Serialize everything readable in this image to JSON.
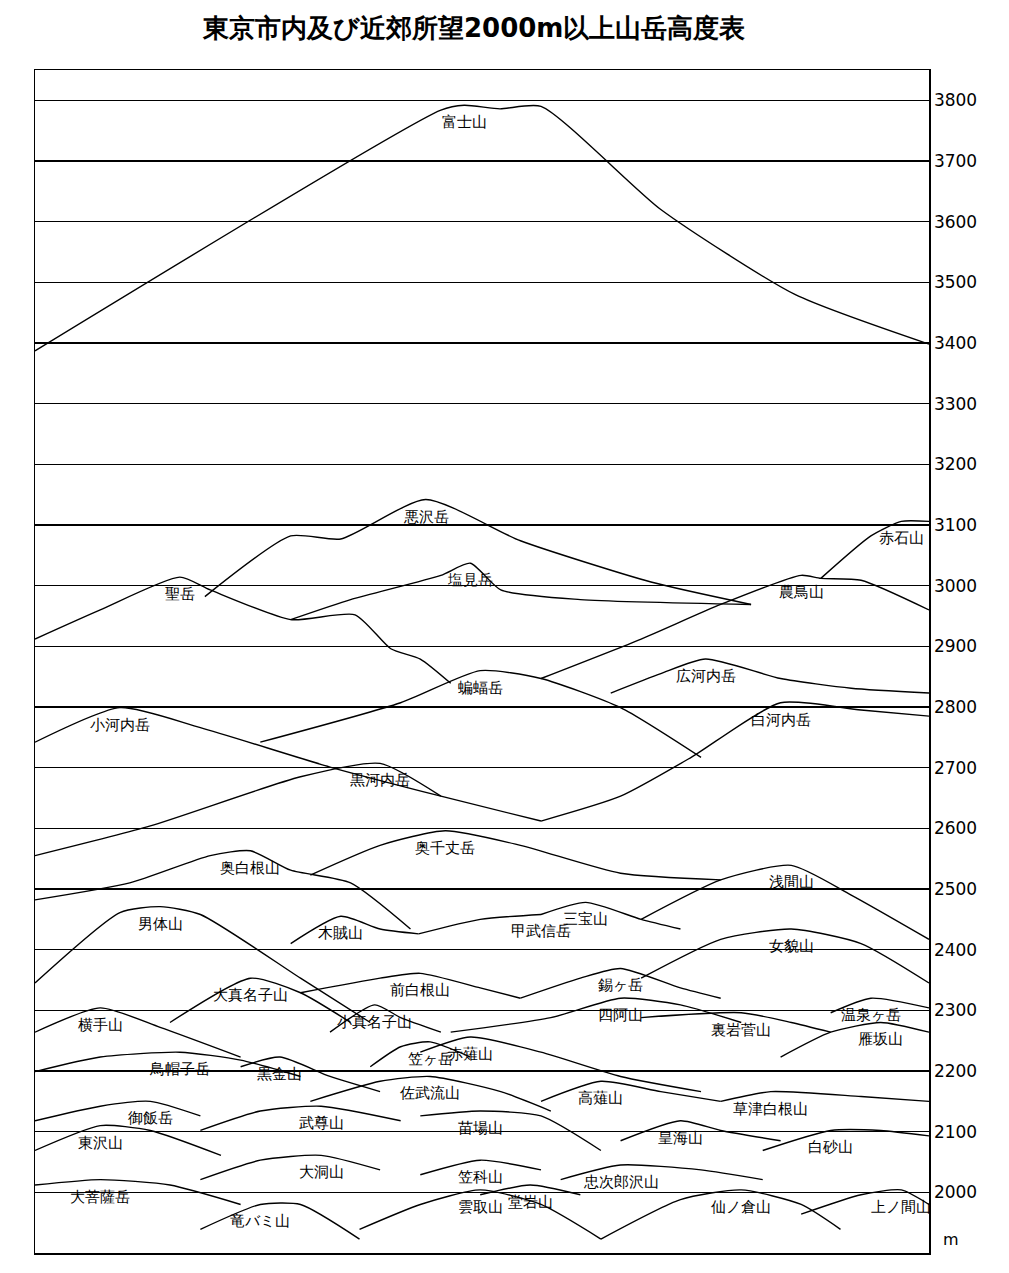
{
  "chart_data": {
    "type": "line",
    "title": "東京市内及び近郊所望2000m以上山岳高度表",
    "y_label": "m",
    "xlim": [
      0,
      100
    ],
    "ylim": [
      1900,
      3850
    ],
    "yticks": [
      2000,
      2100,
      2200,
      2300,
      2400,
      2500,
      2600,
      2700,
      2800,
      2900,
      3000,
      3100,
      3200,
      3300,
      3400,
      3500,
      3600,
      3700,
      3800
    ],
    "grid": true,
    "tick_labels": "y",
    "color": "#000000",
    "series": [
      {
        "name": "富士山",
        "x": [
          0,
          45.4,
          48,
          52,
          56.6,
          70,
          85,
          100
        ],
        "values": [
          3387,
          3784,
          3792,
          3786,
          3790,
          3620,
          3480,
          3398
        ]
      },
      {
        "name": "悪沢岳",
        "x": [
          19,
          28.6,
          34.2,
          43.7,
          54.3,
          68.9,
          80.1
        ],
        "values": [
          2982,
          3082,
          3077,
          3142,
          3074,
          3006,
          2969
        ]
      },
      {
        "name": "聖岳",
        "x": [
          0,
          7.3,
          16.2,
          19.6,
          28.6,
          35.8,
          39.8,
          43.1,
          46.5
        ],
        "values": [
          2912,
          2960,
          3014,
          2993,
          2944,
          2952,
          2896,
          2879,
          2839
        ]
      },
      {
        "name": "塩見岳",
        "x": [
          28.6,
          35.3,
          45.4,
          48.7,
          52.1,
          61,
          80.1
        ],
        "values": [
          2944,
          2977,
          3017,
          3037,
          2993,
          2977,
          2969
        ]
      },
      {
        "name": "農鳥山",
        "x": [
          56.6,
          67.8,
          76.7,
          85.7,
          87.9,
          92.4,
          100
        ],
        "values": [
          2847,
          2912,
          2969,
          3017,
          3012,
          3009,
          2960
        ]
      },
      {
        "name": "赤石山",
        "x": [
          87.9,
          93.5,
          96.9,
          100
        ],
        "values": [
          3012,
          3082,
          3106,
          3106
        ]
      },
      {
        "name": "広河内岳",
        "x": [
          64.4,
          70,
          75,
          83.4,
          91.3,
          100
        ],
        "values": [
          2823,
          2855,
          2879,
          2847,
          2831,
          2823
        ]
      },
      {
        "name": "蝙蝠岳",
        "x": [
          25.2,
          40.9,
          49.8,
          56.6,
          65.5,
          74.5
        ],
        "values": [
          2742,
          2807,
          2860,
          2847,
          2799,
          2717
        ]
      },
      {
        "name": "白河内岳",
        "x": [
          56.6,
          65.5,
          73.4,
          83.4,
          92.4,
          100
        ],
        "values": [
          2612,
          2653,
          2717,
          2807,
          2795,
          2785
        ]
      },
      {
        "name": "小河内岳",
        "x": [
          0,
          9.5,
          18.5,
          33,
          45.4,
          56.6
        ],
        "values": [
          2742,
          2799,
          2766,
          2701,
          2653,
          2612
        ]
      },
      {
        "name": "黒河内岳",
        "x": [
          0,
          12.9,
          29.7,
          38.6,
          45.4
        ],
        "values": [
          2555,
          2604,
          2685,
          2707,
          2653
        ]
      },
      {
        "name": "奥千丈岳",
        "x": [
          30.8,
          38.6,
          45.9,
          54.3,
          65.5,
          76.7
        ],
        "values": [
          2523,
          2572,
          2596,
          2572,
          2526,
          2515
        ]
      },
      {
        "name": "浅間山",
        "x": [
          67.8,
          76.7,
          84.6,
          91.3,
          100
        ],
        "values": [
          2450,
          2515,
          2539,
          2490,
          2417
        ]
      },
      {
        "name": "奥白根山",
        "x": [
          0,
          10.6,
          19.6,
          24.1,
          28.6,
          35.3,
          42
        ],
        "values": [
          2482,
          2510,
          2555,
          2563,
          2531,
          2510,
          2434
        ]
      },
      {
        "name": "男体山",
        "x": [
          0,
          9.5,
          14,
          18.5,
          29.7,
          37.5
        ],
        "values": [
          2345,
          2461,
          2471,
          2458,
          2353,
          2280
        ]
      },
      {
        "name": "木賊山",
        "x": [
          28.6,
          34.2,
          38.6,
          42.9
        ],
        "values": [
          2410,
          2455,
          2434,
          2426
        ]
      },
      {
        "name": "甲武信岳",
        "x": [
          42.9,
          49.8,
          56.6
        ],
        "values": [
          2426,
          2450,
          2458
        ]
      },
      {
        "name": "三宝山",
        "x": [
          56.6,
          61.6,
          67.8,
          72.2
        ],
        "values": [
          2458,
          2478,
          2450,
          2434
        ]
      },
      {
        "name": "女貌山",
        "x": [
          67.8,
          76.7,
          84.6,
          92.4,
          100
        ],
        "values": [
          2353,
          2417,
          2434,
          2410,
          2345
        ]
      },
      {
        "name": "前白根山",
        "x": [
          29.7,
          38.6,
          43.1,
          49.8,
          54.3
        ],
        "values": [
          2329,
          2353,
          2361,
          2337,
          2320
        ]
      },
      {
        "name": "錫ヶ岳",
        "x": [
          54.3,
          61,
          65.5,
          72.2,
          76.7
        ],
        "values": [
          2320,
          2353,
          2369,
          2337,
          2320
        ]
      },
      {
        "name": "大真名子山",
        "x": [
          15.1,
          24.1,
          29.7,
          35.3
        ],
        "values": [
          2280,
          2353,
          2329,
          2280
        ]
      },
      {
        "name": "横手山",
        "x": [
          0,
          7.3,
          14,
          23
        ],
        "values": [
          2264,
          2304,
          2272,
          2223
        ]
      },
      {
        "name": "小真名子山",
        "x": [
          33,
          38,
          40.9,
          45.4
        ],
        "values": [
          2264,
          2309,
          2288,
          2264
        ]
      },
      {
        "name": "四阿山",
        "x": [
          46.5,
          57.7,
          65.5,
          72.2,
          79
        ],
        "values": [
          2264,
          2288,
          2320,
          2309,
          2280
        ]
      },
      {
        "name": "裏岩菅山",
        "x": [
          67.8,
          79,
          84.6,
          89
        ],
        "values": [
          2288,
          2296,
          2280,
          2264
        ]
      },
      {
        "name": "温泉ヶ岳",
        "x": [
          89,
          93.5,
          100
        ],
        "values": [
          2296,
          2320,
          2304
        ]
      },
      {
        "name": "雁坂山",
        "x": [
          83.4,
          89,
          94.6,
          100
        ],
        "values": [
          2223,
          2264,
          2280,
          2264
        ]
      },
      {
        "name": "赤薙山",
        "x": [
          43.1,
          48.7,
          56.6,
          65.5,
          74.5
        ],
        "values": [
          2231,
          2256,
          2231,
          2191,
          2166
        ]
      },
      {
        "name": "鳥帽子岳",
        "x": [
          0,
          7.3,
          16.2,
          23,
          29.7
        ],
        "values": [
          2199,
          2223,
          2231,
          2218,
          2191
        ]
      },
      {
        "name": "黒金山",
        "x": [
          23,
          27.4,
          33,
          38.6
        ],
        "values": [
          2207,
          2223,
          2191,
          2166
        ]
      },
      {
        "name": "笠ヶ岳",
        "x": [
          37.5,
          40.9,
          44.2,
          48.7
        ],
        "values": [
          2207,
          2240,
          2248,
          2223
        ]
      },
      {
        "name": "佐武流山",
        "x": [
          30.8,
          38.6,
          44.2,
          52.1,
          57.7
        ],
        "values": [
          2150,
          2183,
          2191,
          2166,
          2134
        ]
      },
      {
        "name": "御飯岳",
        "x": [
          0,
          7.3,
          12.9,
          18.5
        ],
        "values": [
          2118,
          2142,
          2150,
          2126
        ]
      },
      {
        "name": "武尊山",
        "x": [
          18.5,
          25.2,
          32,
          40.9
        ],
        "values": [
          2102,
          2134,
          2142,
          2118
        ]
      },
      {
        "name": "苗場山",
        "x": [
          43.1,
          49.8,
          56.6,
          63.3
        ],
        "values": [
          2126,
          2134,
          2126,
          2069
        ]
      },
      {
        "name": "高薙山",
        "x": [
          56.6,
          63.3,
          70,
          76.7
        ],
        "values": [
          2150,
          2183,
          2166,
          2150
        ]
      },
      {
        "name": "草津白根山",
        "x": [
          76.7,
          82.3,
          92.4,
          100
        ],
        "values": [
          2150,
          2166,
          2158,
          2150
        ]
      },
      {
        "name": "皇海山",
        "x": [
          65.5,
          72.2,
          76.7,
          83.4
        ],
        "values": [
          2085,
          2118,
          2102,
          2085
        ]
      },
      {
        "name": "白砂山",
        "x": [
          81.4,
          89,
          94.6,
          100
        ],
        "values": [
          2069,
          2102,
          2102,
          2093
        ]
      },
      {
        "name": "東沢山",
        "x": [
          0,
          7.3,
          12.9,
          20.8
        ],
        "values": [
          2069,
          2110,
          2102,
          2061
        ]
      },
      {
        "name": "忠次郎沢山",
        "x": [
          58.8,
          65.5,
          74.5,
          81.4
        ],
        "values": [
          2021,
          2045,
          2037,
          2021
        ]
      },
      {
        "name": "笠科山",
        "x": [
          43.1,
          49.8,
          56.6
        ],
        "values": [
          2029,
          2053,
          2037
        ]
      },
      {
        "name": "大洞山",
        "x": [
          18.5,
          25.2,
          32,
          38.6
        ],
        "values": [
          2021,
          2053,
          2061,
          2037
        ]
      },
      {
        "name": "堂岩山",
        "x": [
          49.8,
          55.4,
          61
        ],
        "values": [
          1996,
          2012,
          1996
        ]
      },
      {
        "name": "大菩薩岳",
        "x": [
          0,
          7.3,
          15.1,
          23
        ],
        "values": [
          2012,
          2021,
          2012,
          1980
        ]
      },
      {
        "name": "竜バミ山",
        "x": [
          18.5,
          25.2,
          29.7,
          36.3
        ],
        "values": [
          1939,
          1980,
          1980,
          1923
        ]
      },
      {
        "name": "雲取山",
        "x": [
          36.3,
          43.1,
          49.8,
          56.6,
          63.3
        ],
        "values": [
          1939,
          1980,
          2004,
          1980,
          1923
        ]
      },
      {
        "name": "仙ノ倉山",
        "x": [
          63.3,
          72.2,
          79,
          85.7,
          90.1
        ],
        "values": [
          1923,
          1988,
          2004,
          1980,
          1939
        ]
      },
      {
        "name": "上ノ間山",
        "x": [
          85.7,
          92.4,
          96.9,
          100
        ],
        "values": [
          1964,
          1996,
          2004,
          1980
        ]
      }
    ]
  }
}
